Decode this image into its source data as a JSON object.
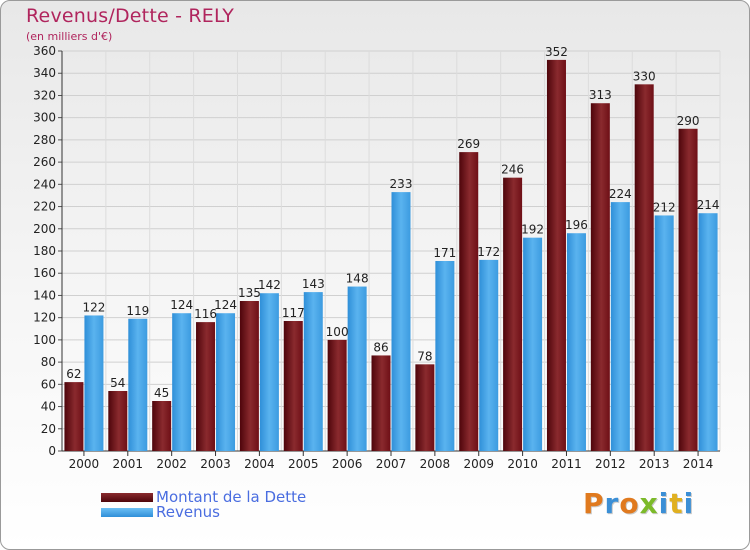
{
  "header": {
    "title": "Revenus/Dette - RELY",
    "subtitle": "(en milliers d'€)"
  },
  "legend": {
    "dette_label": "Montant de la Dette",
    "revenus_label": "Revenus"
  },
  "logo": {
    "text": "Proxiti",
    "colors": [
      "#e07a1f",
      "#3b8fd6",
      "#e07a1f",
      "#7cba2a",
      "#3b8fd6",
      "#e0b020",
      "#3b8fd6"
    ]
  },
  "colors": {
    "dette": "#6e0f16",
    "revenus": "#48a6e6",
    "title": "#b0255d",
    "legend_text": "#4a6de0"
  },
  "chart_data": {
    "type": "bar",
    "title": "Revenus/Dette - RELY",
    "subtitle": "(en milliers d'€)",
    "categories": [
      "2000",
      "2001",
      "2002",
      "2003",
      "2004",
      "2005",
      "2006",
      "2007",
      "2008",
      "2009",
      "2010",
      "2011",
      "2012",
      "2013",
      "2014"
    ],
    "series": [
      {
        "name": "Montant de la Dette",
        "values": [
          62,
          54,
          45,
          116,
          135,
          117,
          100,
          86,
          78,
          269,
          246,
          352,
          313,
          330,
          290
        ]
      },
      {
        "name": "Revenus",
        "values": [
          122,
          119,
          124,
          124,
          142,
          143,
          148,
          233,
          171,
          172,
          192,
          196,
          224,
          212,
          214
        ]
      }
    ],
    "ylim": [
      0,
      360
    ],
    "ytick_step": 20,
    "grid": true,
    "legend_position": "bottom-left"
  }
}
